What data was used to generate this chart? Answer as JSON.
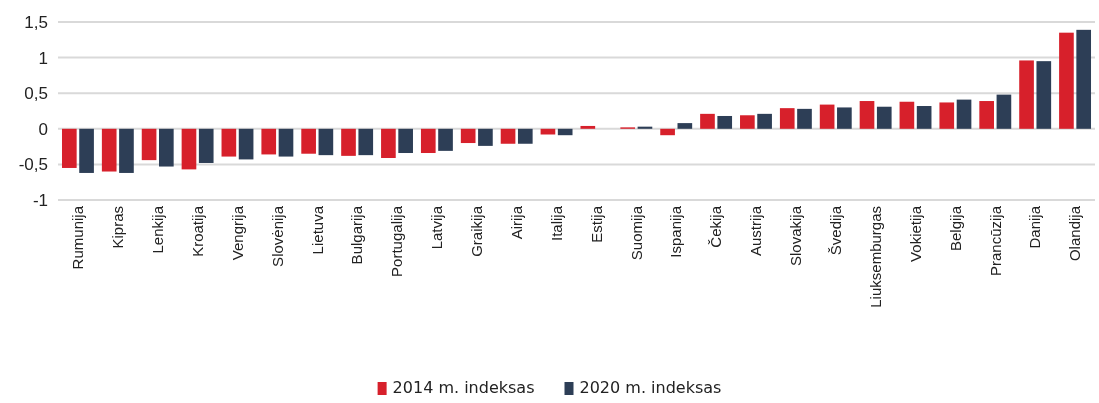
{
  "chart_data": {
    "type": "bar",
    "categories": [
      "Rumunija",
      "Kipras",
      "Lenkija",
      "Kroatija",
      "Vengrija",
      "Slovėnija",
      "Lietuva",
      "Bulgarija",
      "Portugalija",
      "Latvija",
      "Graikija",
      "Airija",
      "Italija",
      "Estija",
      "Suomija",
      "Ispanija",
      "Čekija",
      "Austrija",
      "Slovakija",
      "Švedija",
      "Liuksemburgas",
      "Vokietija",
      "Belgija",
      "Prancūzija",
      "Danija",
      "Olandija"
    ],
    "series": [
      {
        "name": "2014 m. indeksas",
        "color": "#d7202b",
        "values": [
          -0.55,
          -0.6,
          -0.44,
          -0.57,
          -0.39,
          -0.36,
          -0.35,
          -0.38,
          -0.41,
          -0.34,
          -0.2,
          -0.21,
          -0.08,
          0.04,
          0.02,
          -0.09,
          0.21,
          0.19,
          0.29,
          0.34,
          0.39,
          0.38,
          0.37,
          0.39,
          0.96,
          1.35
        ]
      },
      {
        "name": "2020 m. indeksas",
        "color": "#2d3e56",
        "values": [
          -0.62,
          -0.62,
          -0.53,
          -0.48,
          -0.43,
          -0.39,
          -0.37,
          -0.37,
          -0.34,
          -0.31,
          -0.24,
          -0.21,
          -0.09,
          0,
          0.03,
          0.08,
          0.18,
          0.21,
          0.28,
          0.3,
          0.31,
          0.32,
          0.41,
          0.48,
          0.95,
          1.39
        ]
      }
    ],
    "ylim": [
      -1,
      1.5
    ],
    "yticks": [
      {
        "value": -1,
        "label": "-1"
      },
      {
        "value": -0.5,
        "label": "-0,5"
      },
      {
        "value": 0,
        "label": "0"
      },
      {
        "value": 0.5,
        "label": "0,5"
      },
      {
        "value": 1,
        "label": "1"
      },
      {
        "value": 1.5,
        "label": "1,5"
      }
    ],
    "grid": "y",
    "legend": "bottom"
  }
}
